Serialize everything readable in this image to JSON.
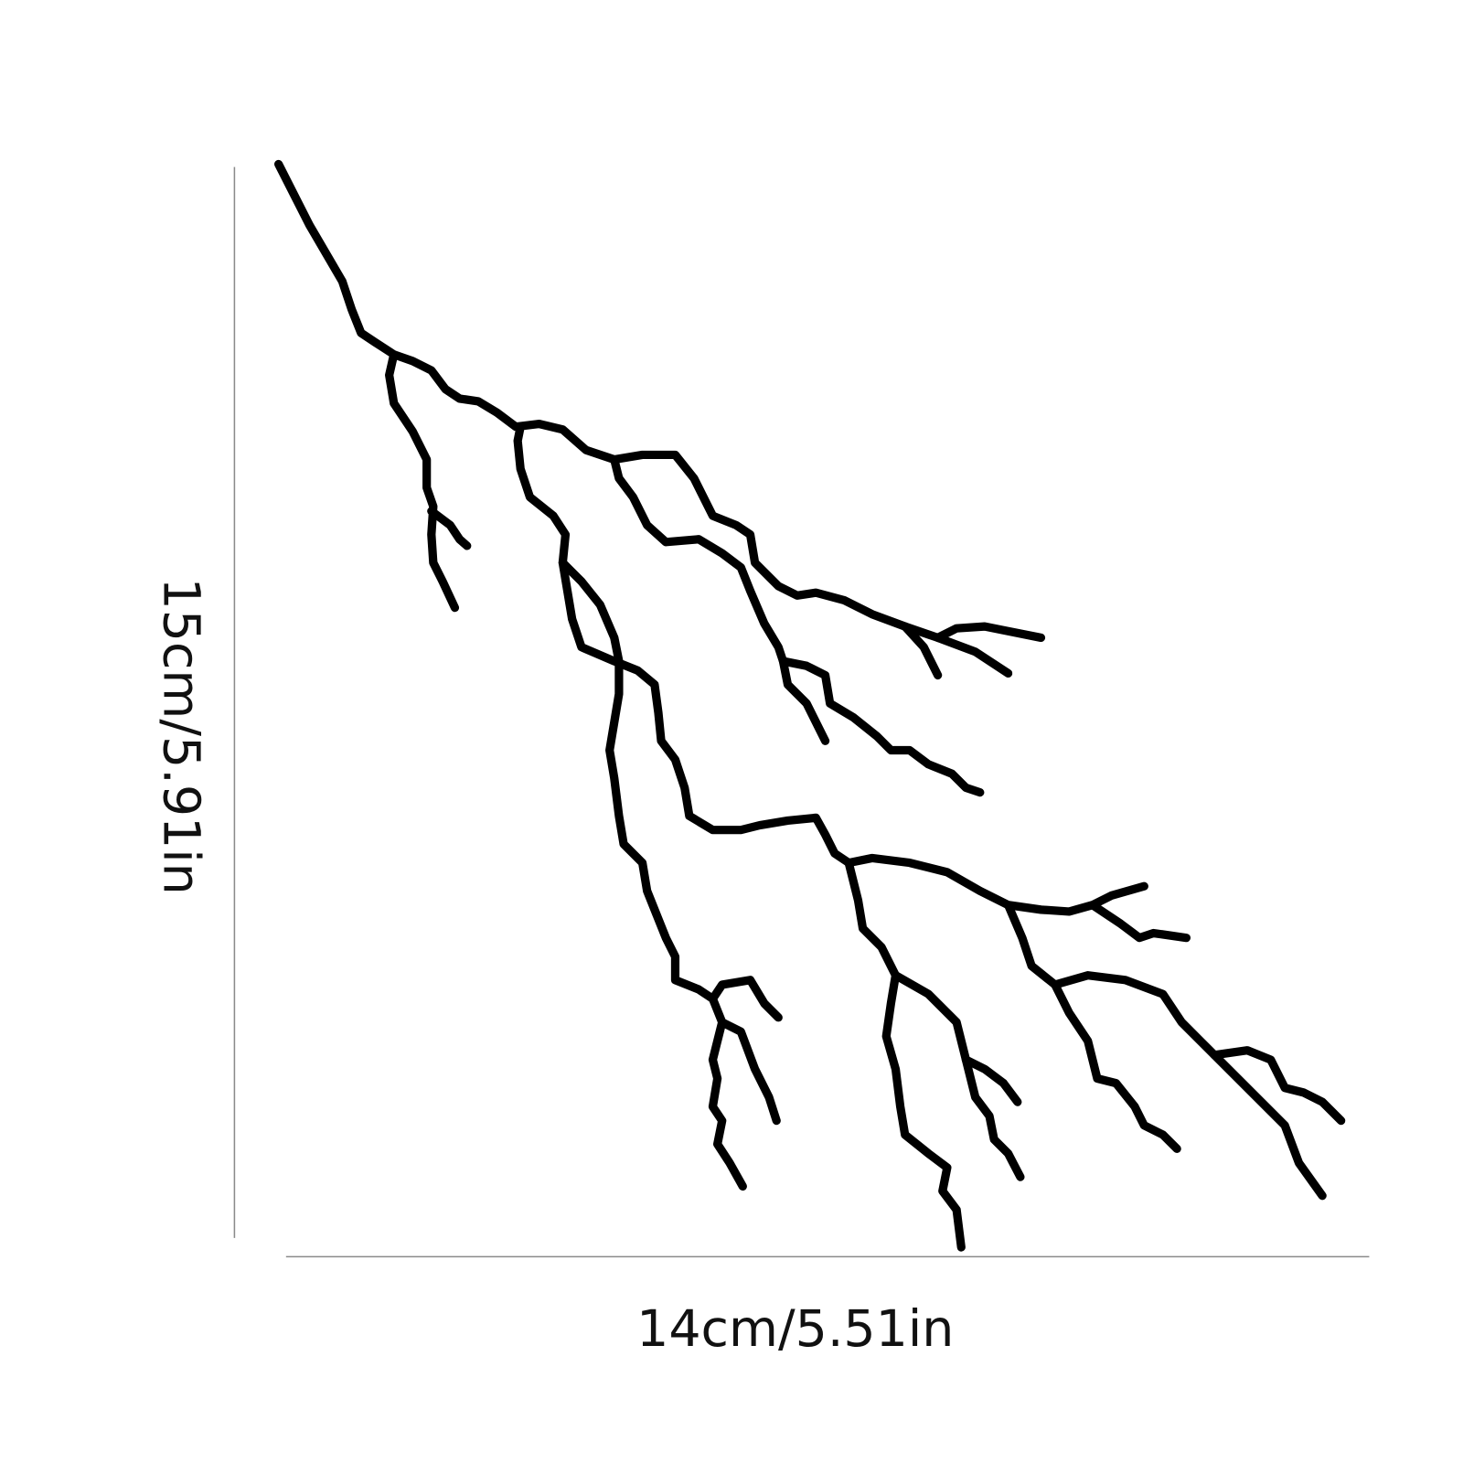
{
  "dimensions": {
    "height_label": "15cm/5.91in",
    "width_label": "14cm/5.51in"
  },
  "colors": {
    "decal": "#000000",
    "dimension_line": "#8a8a8a",
    "background": "#ffffff"
  }
}
